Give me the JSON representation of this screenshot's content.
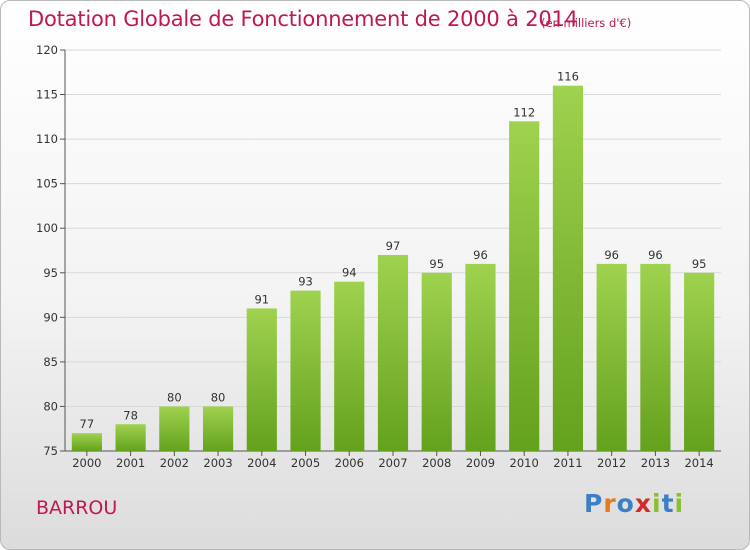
{
  "header": {
    "title": "Dotation Globale de Fonctionnement de 2000 à 2014",
    "unit": "(en milliers d'€)"
  },
  "footer": {
    "commune": "BARROU",
    "logo": "Proxiti"
  },
  "colors": {
    "title": "#c0184f",
    "bar_top": "#9fd24f",
    "bar_bottom": "#64a11d",
    "logo_letters": [
      "#3b7fc4",
      "#e47a22",
      "#3b7fc4",
      "#d12b2b",
      "#8bbf2e",
      "#3b7fc4",
      "#8bbf2e"
    ]
  },
  "chart_data": {
    "type": "bar",
    "title": "Dotation Globale de Fonctionnement de 2000 à 2014",
    "subtitle": "(en milliers d'€)",
    "xlabel": "",
    "ylabel": "",
    "categories": [
      "2000",
      "2001",
      "2002",
      "2003",
      "2004",
      "2005",
      "2006",
      "2007",
      "2008",
      "2009",
      "2010",
      "2011",
      "2012",
      "2013",
      "2014"
    ],
    "values": [
      77,
      78,
      80,
      80,
      91,
      93,
      94,
      97,
      95,
      96,
      112,
      116,
      96,
      96,
      95
    ],
    "ylim": [
      75,
      120
    ],
    "yticks": [
      75,
      80,
      85,
      90,
      95,
      100,
      105,
      110,
      115,
      120
    ],
    "grid": true,
    "legend": "none"
  }
}
